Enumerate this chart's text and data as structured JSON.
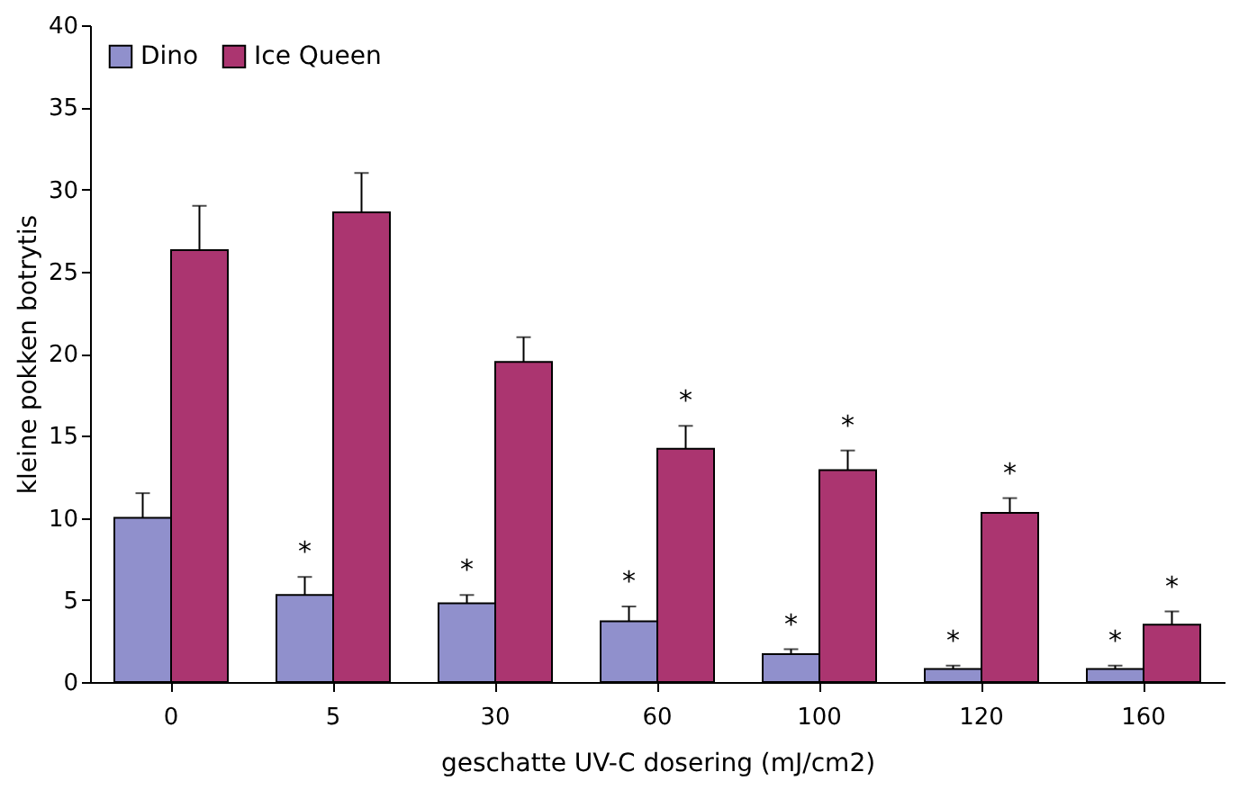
{
  "chart_data": {
    "type": "bar",
    "xlabel": "geschatte UV-C dosering (mJ/cm2)",
    "ylabel": "kleine pokken botrytis",
    "categories": [
      "0",
      "5",
      "30",
      "60",
      "100",
      "120",
      "160"
    ],
    "series": [
      {
        "name": "Dino",
        "color": "#9090cc",
        "values": [
          10.0,
          5.3,
          4.8,
          3.7,
          1.7,
          0.8,
          0.8
        ],
        "errors": [
          1.5,
          1.1,
          0.5,
          0.9,
          0.3,
          0.2,
          0.2
        ]
      },
      {
        "name": "Ice Queen",
        "color": "#ab3570",
        "values": [
          26.3,
          28.6,
          19.5,
          14.2,
          12.9,
          10.3,
          3.5
        ],
        "errors": [
          2.7,
          2.4,
          1.5,
          1.4,
          1.2,
          0.9,
          0.8
        ]
      }
    ],
    "ylim": [
      0,
      40
    ],
    "yticks": [
      0,
      5,
      10,
      15,
      20,
      25,
      30,
      35,
      40
    ],
    "grid": false,
    "legend": "top left",
    "annotations": [
      {
        "text": "*",
        "x": "5",
        "y": 5.3
      },
      {
        "text": "*",
        "x": "30",
        "y": 4.8
      },
      {
        "text": "*",
        "x": "60",
        "y": 3.7
      },
      {
        "text": "*",
        "x": "100",
        "y": 1.7
      },
      {
        "text": "*",
        "x": "120",
        "y": 0.8
      },
      {
        "text": "*",
        "x": "160",
        "y": 0.8
      },
      {
        "text": "*",
        "x": "60",
        "y": 14.2
      },
      {
        "text": "*",
        "x": "100",
        "y": 12.9
      },
      {
        "text": "*",
        "x": "120",
        "y": 10.3
      },
      {
        "text": "*",
        "x": "160",
        "y": 3.5
      }
    ]
  }
}
